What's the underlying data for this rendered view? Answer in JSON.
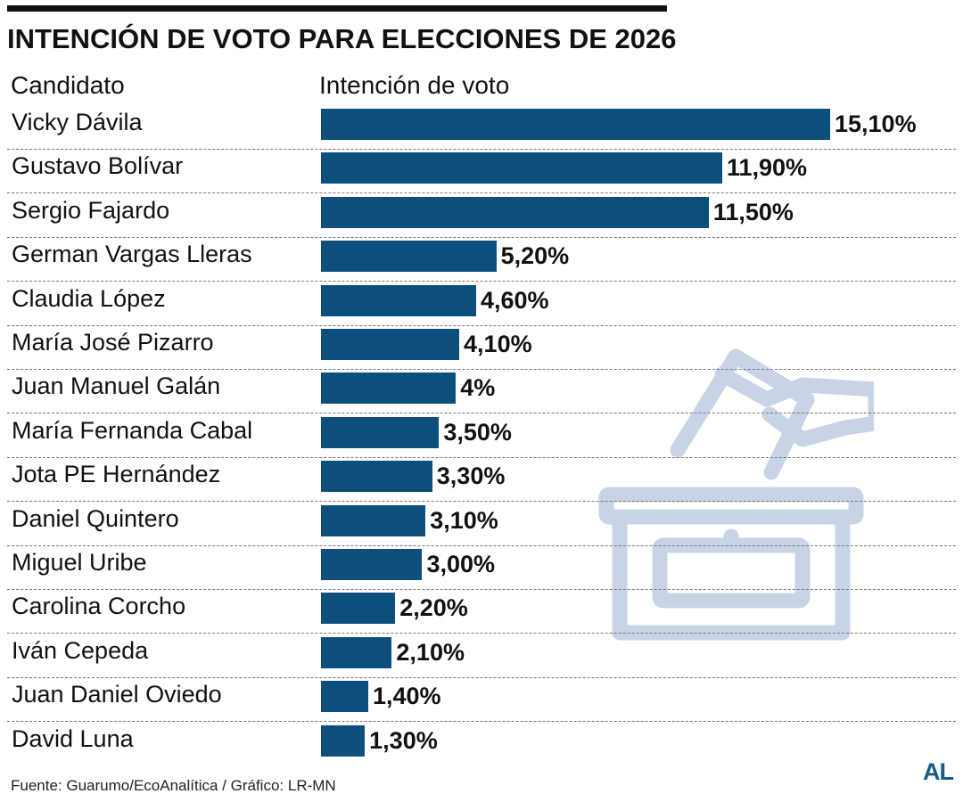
{
  "title": "INTENCIÓN DE VOTO PARA ELECCIONES DE 2026",
  "headers": {
    "candidate": "Candidato",
    "value": "Intención de voto"
  },
  "source": "Fuente: Guarumo/EcoAnalítica / Gráfico: LR-MN",
  "logo": "AL",
  "icon": "ballot-box-icon",
  "colors": {
    "bar": "#0c4f7c",
    "icon": "#c9d3e6",
    "logo": "#1a5b8c"
  },
  "chart_data": {
    "type": "bar",
    "orientation": "horizontal",
    "title": "INTENCIÓN DE VOTO PARA ELECCIONES DE 2026",
    "xlabel": "Intención de voto",
    "ylabel": "Candidato",
    "xlim": [
      0,
      15.1
    ],
    "grid": false,
    "categories": [
      "Vicky Dávila",
      "Gustavo Bolívar",
      "Sergio Fajardo",
      "German Vargas Lleras",
      "Claudia López",
      "María José Pizarro",
      "Juan Manuel Galán",
      "María Fernanda Cabal",
      "Jota PE Hernández",
      "Daniel Quintero",
      "Miguel Uribe",
      "Carolina Corcho",
      "Iván Cepeda",
      "Juan Daniel Oviedo",
      "David Luna"
    ],
    "values": [
      15.1,
      11.9,
      11.5,
      5.2,
      4.6,
      4.1,
      4.0,
      3.5,
      3.3,
      3.1,
      3.0,
      2.2,
      2.1,
      1.4,
      1.3
    ],
    "labels": [
      "15,10%",
      "11,90%",
      "11,50%",
      "5,20%",
      "4,60%",
      "4,10%",
      "4%",
      "3,50%",
      "3,30%",
      "3,10%",
      "3,00%",
      "2,20%",
      "2,10%",
      "1,40%",
      "1,30%"
    ]
  }
}
